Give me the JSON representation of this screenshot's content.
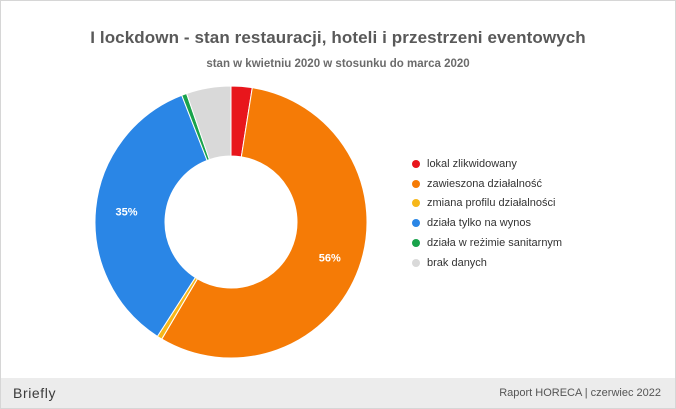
{
  "chart_data": {
    "type": "pie",
    "title": "I lockdown - stan restauracji, hoteli i przestrzeni eventowych",
    "subtitle": "stan w kwietniu 2020 w stosunku do marca 2020",
    "donut": true,
    "categories": [
      "lokal zlikwidowany",
      "zawieszona działalność",
      "zmiana profilu działalności",
      "działa tylko na wynos",
      "działa w reżimie sanitarnym",
      "brak danych"
    ],
    "values": [
      2.5,
      56,
      0.6,
      35,
      0.6,
      5.3
    ],
    "data_labels": [
      "",
      "56%",
      "",
      "35%",
      "",
      ""
    ],
    "colors": [
      "#e8161c",
      "#f57b06",
      "#f6b71a",
      "#2a86e6",
      "#19a34b",
      "#d9d9d9"
    ],
    "legend_position": "right"
  },
  "footer": {
    "brand": "Briefly",
    "report": "Raport HORECA | czerwiec 2022"
  }
}
